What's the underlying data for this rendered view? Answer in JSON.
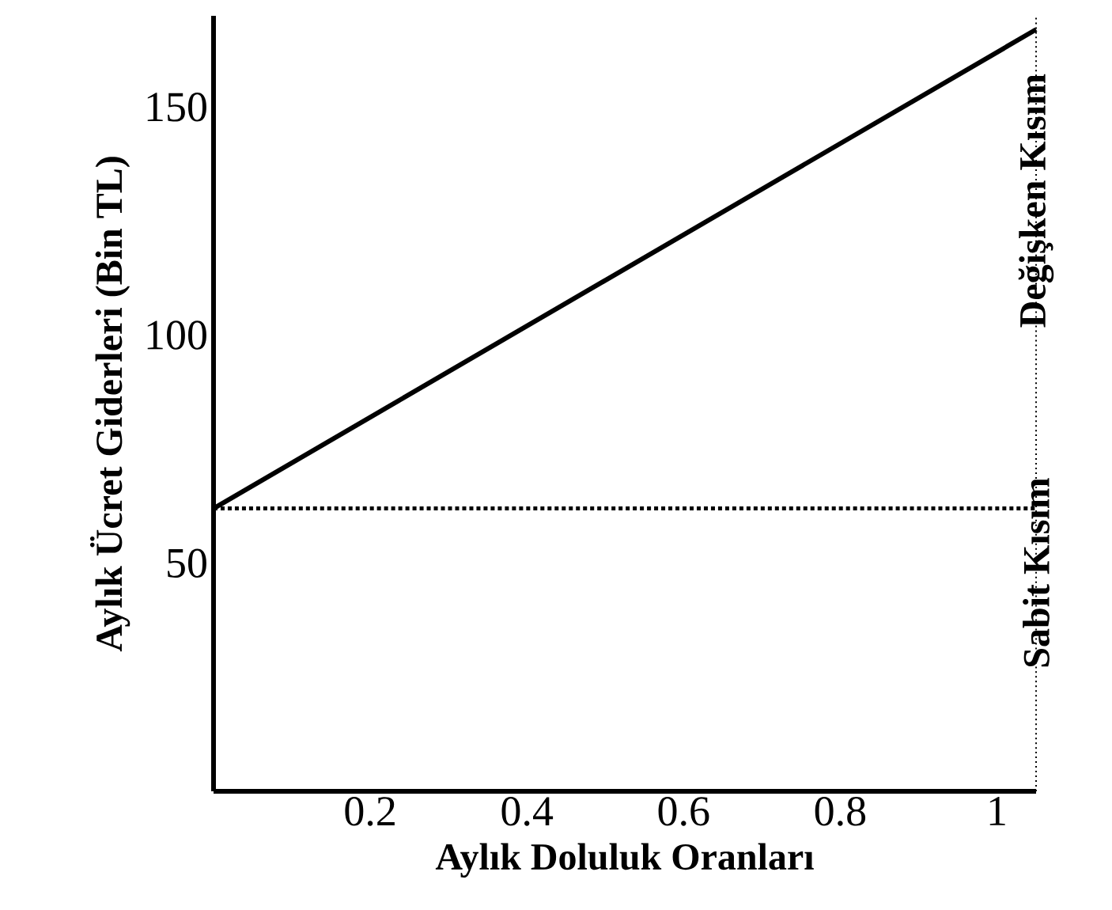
{
  "chart_data": {
    "type": "line",
    "xlabel": "Aylık Doluluk Oranları",
    "ylabel": "Aylık Ücret Giderleri (Bin TL)",
    "x": [
      0,
      1.05
    ],
    "values": [
      62,
      167
    ],
    "color": "#000000",
    "xlim": [
      0,
      1.05
    ],
    "ylim": [
      0,
      170
    ],
    "xticks": [
      0.2,
      0.4,
      0.6,
      0.8,
      1
    ],
    "yticks": [
      50,
      100,
      150
    ],
    "grid": false,
    "marker": "none",
    "line_style": "solid",
    "ref_lines": [
      {
        "axis": "y",
        "value": 62,
        "line_style": "dotted",
        "color": "#000000"
      },
      {
        "axis": "x",
        "value": 1.05,
        "line_style": "dotted",
        "color": "#000000"
      }
    ],
    "annotations": [
      "Sabit Kısım",
      "Değişken Kısım"
    ]
  }
}
